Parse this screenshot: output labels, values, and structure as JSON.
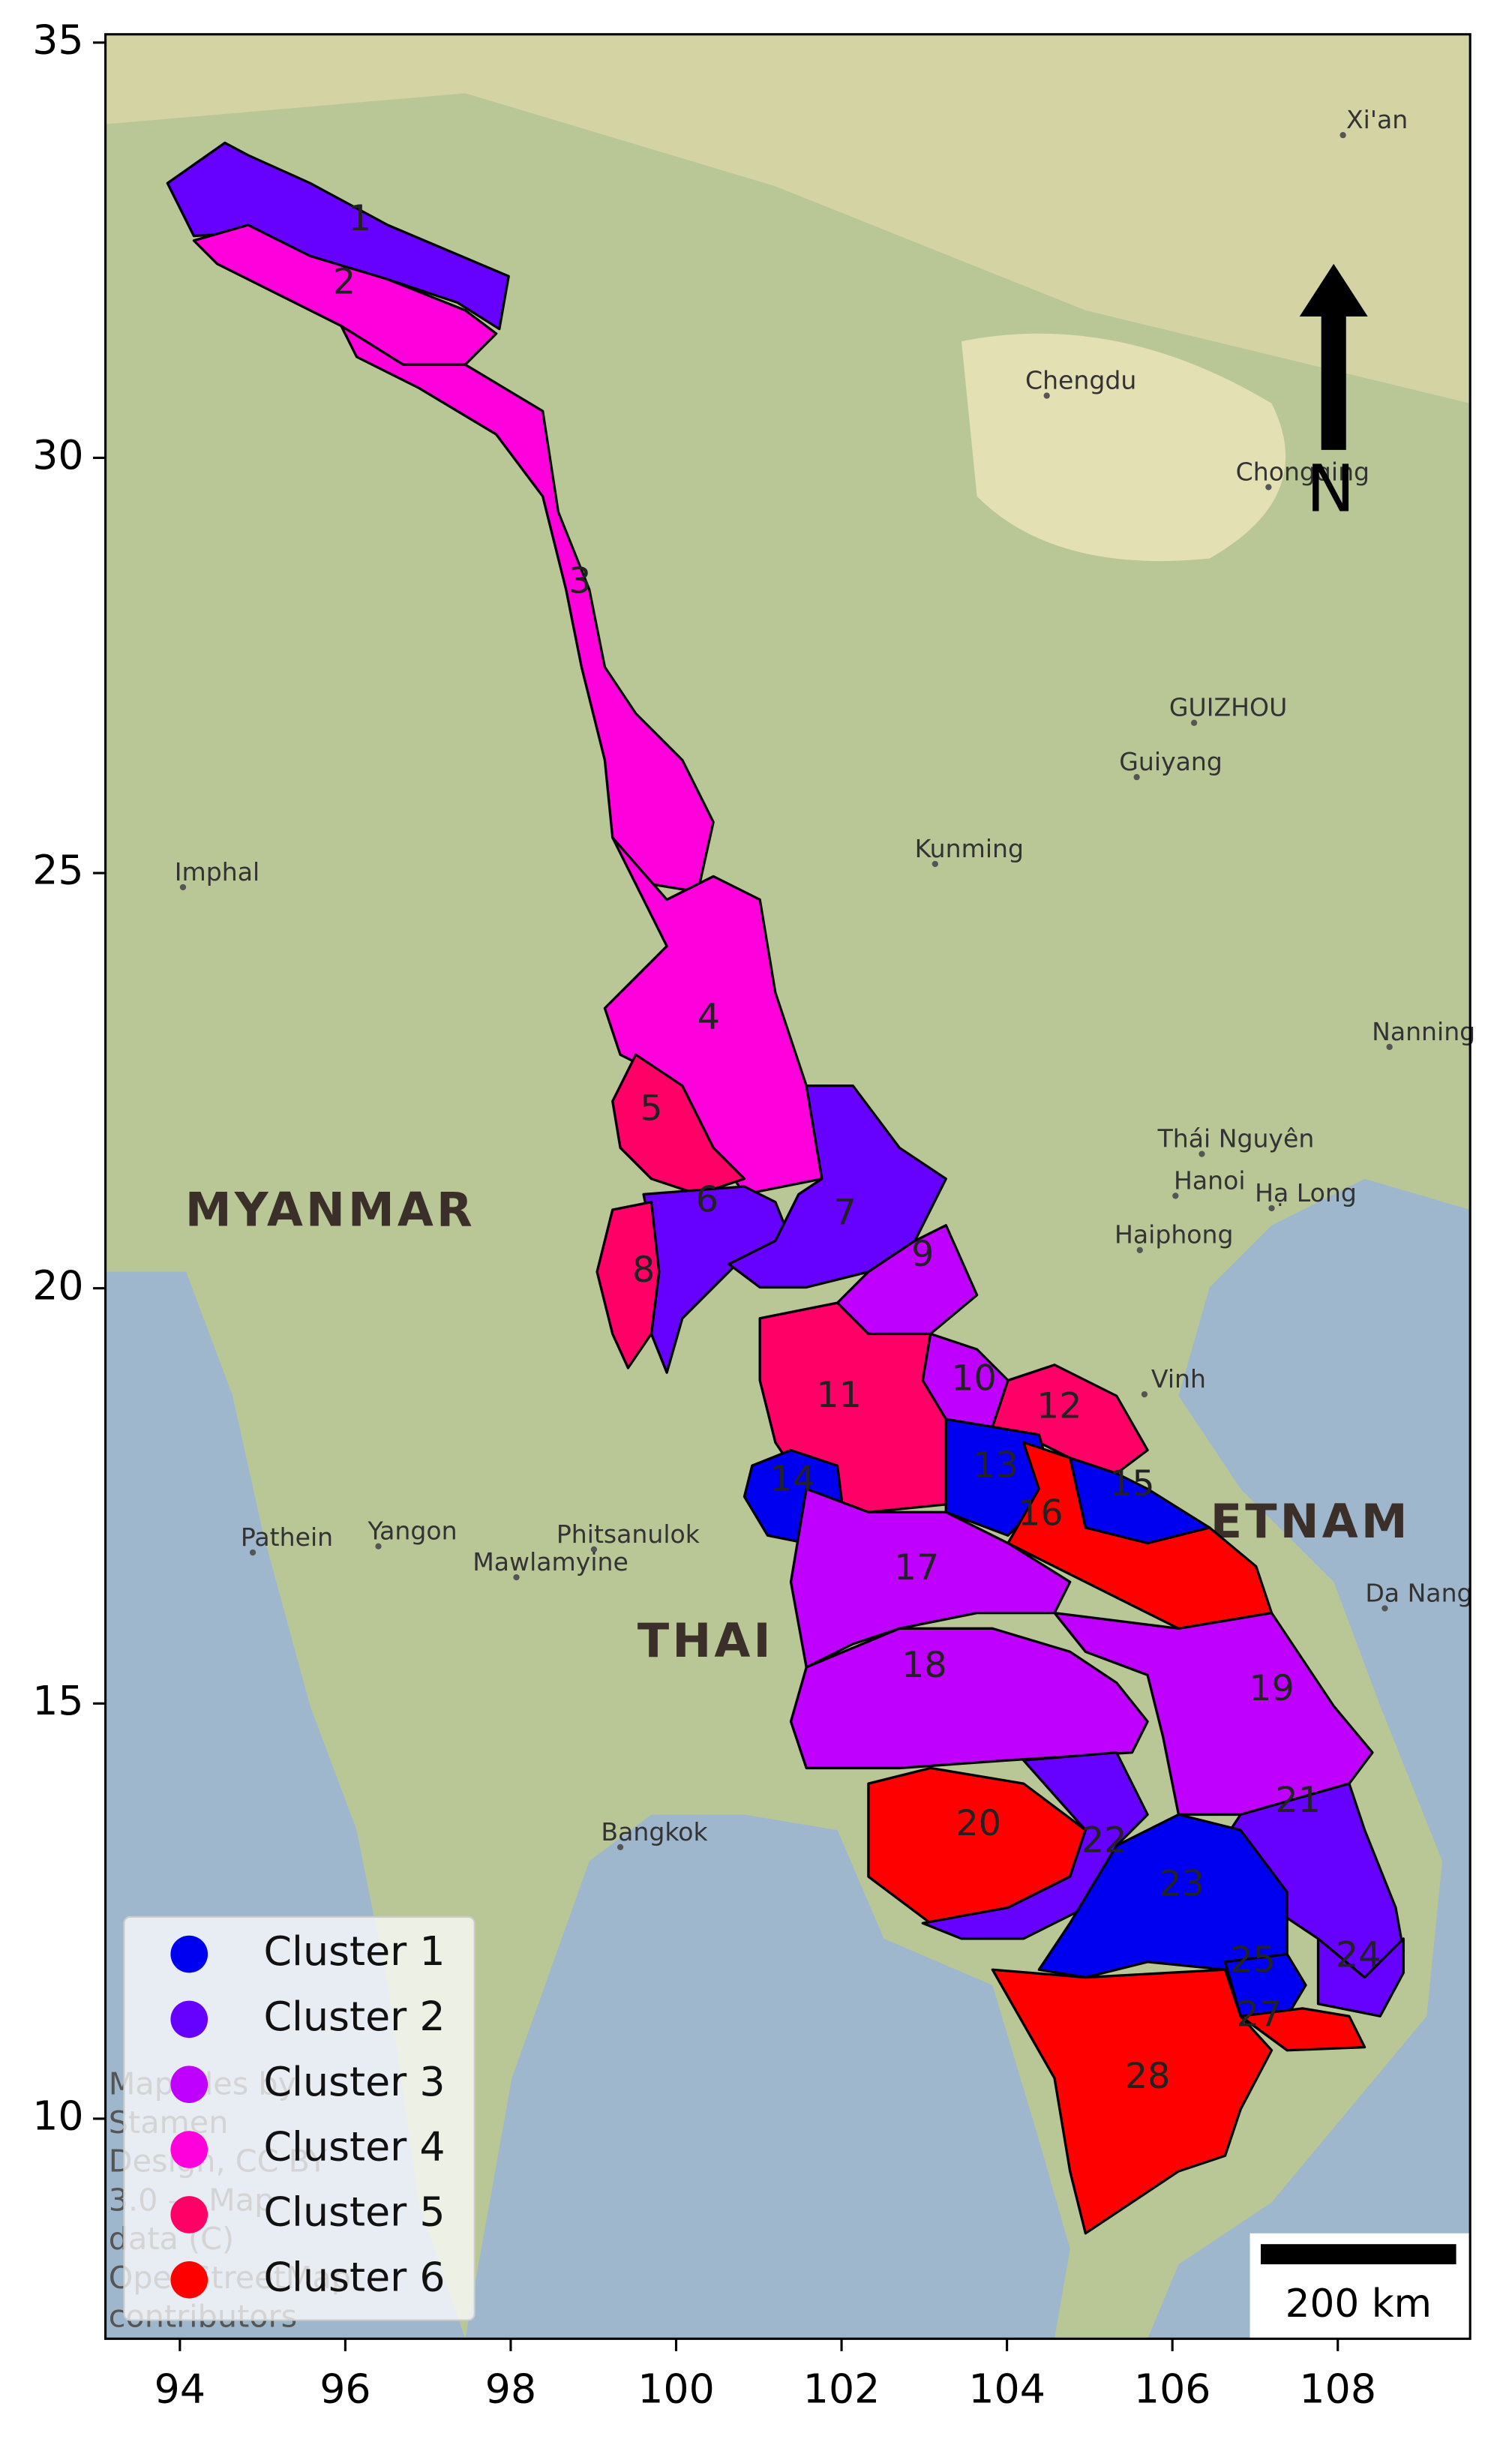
{
  "chart_data": {
    "type": "map",
    "xlim": [
      93.1,
      109.6
    ],
    "ylim": [
      7.35,
      35.1
    ],
    "xticks": [
      94,
      96,
      98,
      100,
      102,
      104,
      106,
      108
    ],
    "yticks": [
      10,
      15,
      20,
      25,
      30,
      35
    ],
    "clusters": [
      {
        "name": "Cluster 1",
        "color": "#0000f0"
      },
      {
        "name": "Cluster 2",
        "color": "#6600ff"
      },
      {
        "name": "Cluster 3",
        "color": "#c000ff"
      },
      {
        "name": "Cluster 4",
        "color": "#ff00dd"
      },
      {
        "name": "Cluster 5",
        "color": "#ff0066"
      },
      {
        "name": "Cluster 6",
        "color": "#ff0000"
      }
    ],
    "basins": [
      {
        "label": "1",
        "cluster": 2
      },
      {
        "label": "2",
        "cluster": 4
      },
      {
        "label": "3",
        "cluster": 4
      },
      {
        "label": "4",
        "cluster": 4
      },
      {
        "label": "5",
        "cluster": 5
      },
      {
        "label": "6",
        "cluster": 2
      },
      {
        "label": "7",
        "cluster": 2
      },
      {
        "label": "8",
        "cluster": 5
      },
      {
        "label": "9",
        "cluster": 3
      },
      {
        "label": "10",
        "cluster": 3
      },
      {
        "label": "11",
        "cluster": 5
      },
      {
        "label": "12",
        "cluster": 5
      },
      {
        "label": "13",
        "cluster": 1
      },
      {
        "label": "14",
        "cluster": 1
      },
      {
        "label": "15",
        "cluster": 1
      },
      {
        "label": "16",
        "cluster": 6
      },
      {
        "label": "17",
        "cluster": 3
      },
      {
        "label": "18",
        "cluster": 3
      },
      {
        "label": "19",
        "cluster": 3
      },
      {
        "label": "20",
        "cluster": 6
      },
      {
        "label": "21",
        "cluster": 2
      },
      {
        "label": "22",
        "cluster": 2
      },
      {
        "label": "23",
        "cluster": 1
      },
      {
        "label": "24",
        "cluster": 2
      },
      {
        "label": "25",
        "cluster": 1
      },
      {
        "label": "27",
        "cluster": 6
      },
      {
        "label": "28",
        "cluster": 6
      }
    ],
    "places": [
      "Xi'an",
      "Chengdu",
      "Chongqing",
      "GUIZHOU",
      "Guiyang",
      "Kunming",
      "Imphal",
      "Nanning",
      "Thái Nguyên",
      "Hanoi",
      "Hạ Long",
      "Haiphong",
      "Vinh",
      "Pathein",
      "Yangon",
      "Phitsanulok",
      "Mawlamyine",
      "Bangkok",
      "Da Nang"
    ],
    "countries": [
      "MYANMAR",
      "THAI",
      "ETNAM"
    ],
    "north_label": "N",
    "scale_label": "200 km",
    "attribution": [
      "Map tiles by",
      "Stamen",
      "Design, CC BY",
      "3.0 — Map",
      "data (C)",
      "OpenStreetMap",
      "contributors"
    ]
  }
}
